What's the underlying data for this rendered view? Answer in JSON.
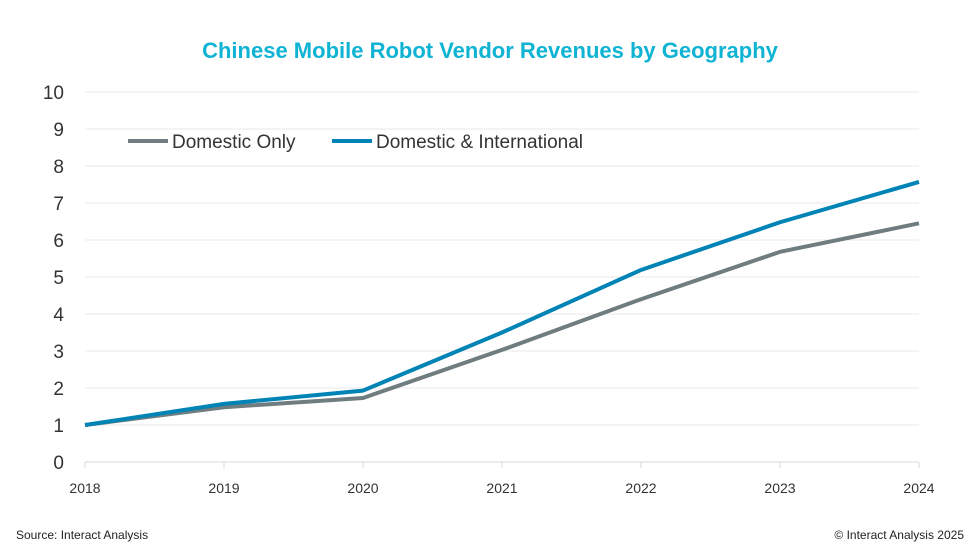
{
  "chart_data": {
    "type": "line",
    "title": "Chinese Mobile Robot Vendor Revenues by Geography",
    "xlabel": "",
    "ylabel": "",
    "categories": [
      "2018",
      "2019",
      "2020",
      "2021",
      "2022",
      "2023",
      "2024"
    ],
    "ylim": [
      0,
      10
    ],
    "yticks": [
      "0",
      "1",
      "2",
      "3",
      "4",
      "5",
      "6",
      "7",
      "8",
      "9",
      "10"
    ],
    "grid": true,
    "legend_placement": "top-left",
    "series": [
      {
        "name": "Domestic Only",
        "color": "#6f7c80",
        "values": [
          1.0,
          1.48,
          1.73,
          3.03,
          4.4,
          5.68,
          6.45
        ]
      },
      {
        "name": "Domestic & International",
        "color": "#0083b5",
        "values": [
          1.0,
          1.57,
          1.93,
          3.5,
          5.19,
          6.48,
          7.57
        ]
      }
    ]
  },
  "footer": {
    "source": "Source: Interact Analysis",
    "copyright": "© Interact Analysis 2025"
  },
  "colors": {
    "title": "#0fb3d3",
    "grid": "#e8e8e8"
  }
}
